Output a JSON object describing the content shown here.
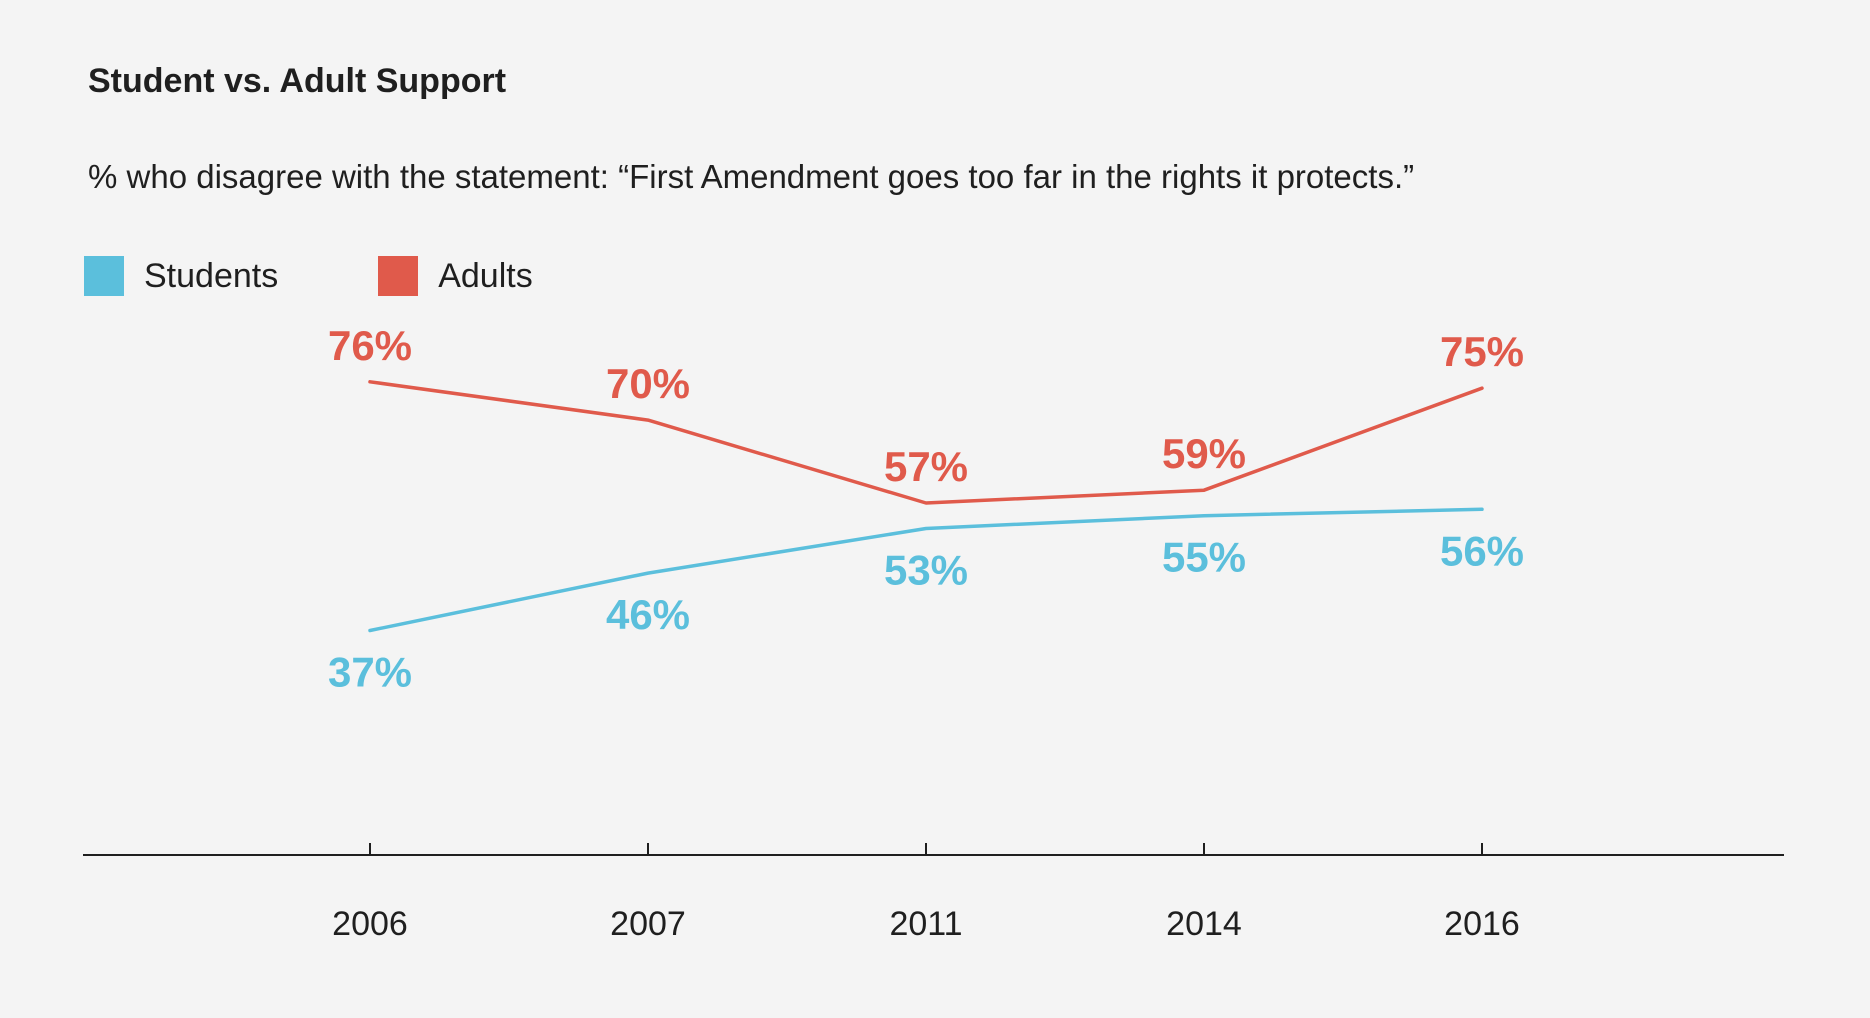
{
  "chart_data": {
    "type": "line",
    "title": "Student vs. Adult Support",
    "subtitle": "% who disagree with the statement: “First Amendment goes too far in the rights it protects.”",
    "x": [
      "2006",
      "2007",
      "2011",
      "2014",
      "2016"
    ],
    "series": [
      {
        "name": "Students",
        "color": "#5bbfdc",
        "values": [
          37,
          46,
          53,
          55,
          56
        ],
        "labels": [
          "37%",
          "46%",
          "53%",
          "55%",
          "56%"
        ]
      },
      {
        "name": "Adults",
        "color": "#e05a4b",
        "values": [
          76,
          70,
          57,
          59,
          75
        ],
        "labels": [
          "76%",
          "70%",
          "57%",
          "59%",
          "75%"
        ]
      }
    ],
    "legend_position": "top-left",
    "grid": false
  }
}
